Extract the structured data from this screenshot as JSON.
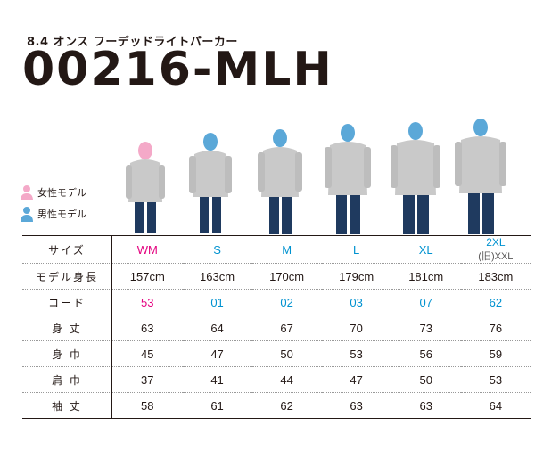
{
  "header": {
    "subtitle": "8.4 オンス フーデッドライトパーカー",
    "model_code": "00216-MLH"
  },
  "legend": {
    "female": "女性モデル",
    "male": "男性モデル",
    "female_color": "#f4a9c8",
    "male_color": "#5ba8d8"
  },
  "colors": {
    "women": "#e4007f",
    "men": "#0092d0",
    "hoodie": "#c9c9c9",
    "jeans": "#1f3a5f"
  },
  "table": {
    "row_labels": [
      "サイズ",
      "モデル身長",
      "コード",
      "身 丈",
      "身 巾",
      "肩 巾",
      "袖 丈"
    ],
    "sizes": [
      "WM",
      "S",
      "M",
      "L",
      "XL",
      "2XL"
    ],
    "size_2xl_note": "(旧)XXL",
    "heights": [
      "157cm",
      "163cm",
      "170cm",
      "179cm",
      "181cm",
      "183cm"
    ],
    "codes": [
      "53",
      "01",
      "02",
      "03",
      "07",
      "62"
    ],
    "body_length": [
      "63",
      "64",
      "67",
      "70",
      "73",
      "76"
    ],
    "body_width": [
      "45",
      "47",
      "50",
      "53",
      "56",
      "59"
    ],
    "shoulder_width": [
      "37",
      "41",
      "44",
      "47",
      "50",
      "53"
    ],
    "sleeve_length": [
      "58",
      "61",
      "62",
      "63",
      "63",
      "64"
    ]
  }
}
